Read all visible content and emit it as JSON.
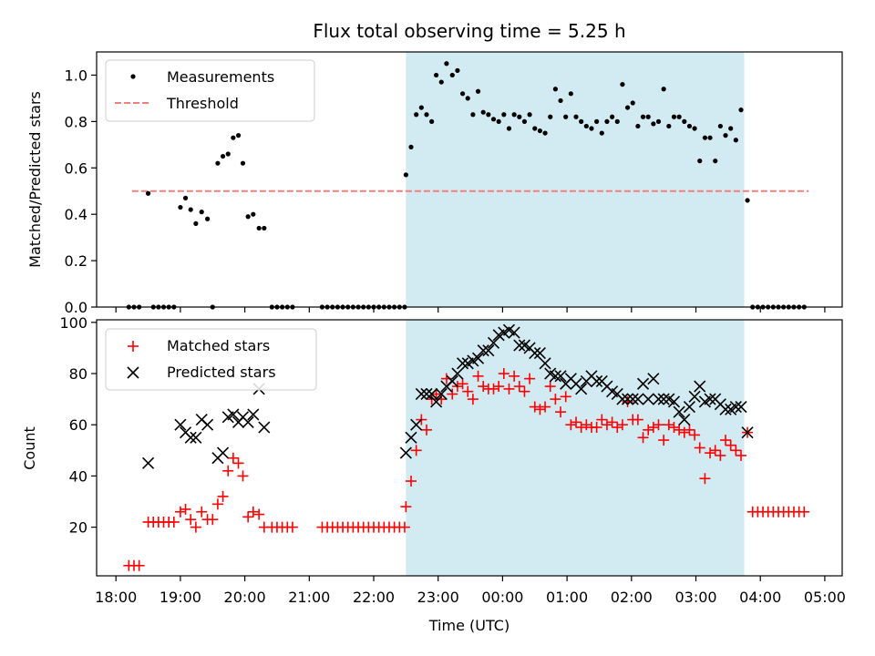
{
  "chart_data": {
    "type": "scatter",
    "title": "Flux total observing time = 5.25 h",
    "xlabel": "Time (UTC)",
    "x_tick_labels": [
      "18:00",
      "19:00",
      "20:00",
      "21:00",
      "22:00",
      "23:00",
      "00:00",
      "01:00",
      "02:00",
      "03:00",
      "04:00",
      "05:00"
    ],
    "x_tick_hours": [
      0,
      1,
      2,
      3,
      4,
      5,
      6,
      7,
      8,
      9,
      10,
      11
    ],
    "x_origin": "18:00",
    "xlim_hours": [
      -0.3,
      11.27
    ],
    "highlight_span_hours": [
      4.5,
      9.75
    ],
    "highlight_color": "#add8e6",
    "panels": [
      {
        "name": "ratio",
        "ylabel": "Matched/Predicted stars",
        "ylim": [
          0,
          1.1
        ],
        "yticks": [
          0,
          0.2,
          0.4,
          0.6,
          0.8,
          1.0
        ],
        "ytick_labels": [
          "0.0",
          "0.2",
          "0.4",
          "0.6",
          "0.8",
          "1.0"
        ],
        "threshold": {
          "name": "Threshold",
          "y": 0.5,
          "x_start": 0.25,
          "x_end": 10.75,
          "color": "#f08080"
        },
        "series": [
          {
            "name": "Measurements",
            "marker": "dot",
            "color": "#000000",
            "x": [
              0.2,
              0.28,
              0.36,
              0.5,
              0.58,
              0.66,
              0.74,
              0.82,
              0.9,
              1.0,
              1.08,
              1.16,
              1.24,
              1.33,
              1.42,
              1.5,
              1.58,
              1.66,
              1.74,
              1.82,
              1.9,
              1.97,
              2.05,
              2.13,
              2.22,
              2.3,
              2.42,
              2.5,
              2.58,
              2.66,
              2.74,
              3.2,
              3.28,
              3.36,
              3.44,
              3.52,
              3.6,
              3.68,
              3.76,
              3.84,
              3.92,
              4.0,
              4.08,
              4.16,
              4.24,
              4.32,
              4.4,
              4.48,
              4.5,
              4.58,
              4.66,
              4.74,
              4.82,
              4.9,
              4.97,
              5.05,
              5.13,
              5.22,
              5.3,
              5.38,
              5.46,
              5.54,
              5.62,
              5.7,
              5.78,
              5.86,
              5.94,
              6.02,
              6.1,
              6.18,
              6.26,
              6.34,
              6.42,
              6.5,
              6.58,
              6.66,
              6.74,
              6.82,
              6.9,
              6.98,
              7.06,
              7.14,
              7.22,
              7.3,
              7.38,
              7.46,
              7.54,
              7.62,
              7.7,
              7.78,
              7.86,
              7.94,
              8.02,
              8.1,
              8.18,
              8.26,
              8.34,
              8.42,
              8.5,
              8.58,
              8.66,
              8.74,
              8.82,
              8.9,
              8.98,
              9.06,
              9.14,
              9.22,
              9.3,
              9.38,
              9.46,
              9.54,
              9.62,
              9.7,
              9.8,
              9.88,
              9.96,
              10.04,
              10.12,
              10.2,
              10.28,
              10.36,
              10.44,
              10.52,
              10.6,
              10.68
            ],
            "y": [
              0,
              0,
              0,
              0.49,
              0,
              0,
              0,
              0,
              0,
              0.43,
              0.47,
              0.42,
              0.36,
              0.41,
              0.38,
              0,
              0.62,
              0.65,
              0.66,
              0.73,
              0.74,
              0.62,
              0.39,
              0.4,
              0.34,
              0.34,
              0,
              0,
              0,
              0,
              0,
              0,
              0,
              0,
              0,
              0,
              0,
              0,
              0,
              0,
              0,
              0,
              0,
              0,
              0,
              0,
              0,
              0,
              0.57,
              0.69,
              0.83,
              0.86,
              0.83,
              0.8,
              1.0,
              0.97,
              1.05,
              1.0,
              1.02,
              0.92,
              0.9,
              0.83,
              0.93,
              0.84,
              0.83,
              0.81,
              0.8,
              0.83,
              0.77,
              0.83,
              0.82,
              0.8,
              0.83,
              0.77,
              0.76,
              0.75,
              0.82,
              0.94,
              0.89,
              0.82,
              0.92,
              0.82,
              0.8,
              0.78,
              0.77,
              0.8,
              0.75,
              0.8,
              0.82,
              0.8,
              0.96,
              0.86,
              0.88,
              0.78,
              0.82,
              0.82,
              0.79,
              0.8,
              0.94,
              0.78,
              0.82,
              0.82,
              0.8,
              0.78,
              0.77,
              0.63,
              0.73,
              0.73,
              0.63,
              0.78,
              0.74,
              0.77,
              0.72,
              0.85,
              0.46,
              0,
              0,
              0,
              0,
              0,
              0,
              0,
              0,
              0,
              0,
              0
            ]
          }
        ]
      },
      {
        "name": "counts",
        "ylabel": "Count",
        "ylim": [
          1,
          101
        ],
        "yticks": [
          20,
          40,
          60,
          80,
          100
        ],
        "ytick_labels": [
          "20",
          "40",
          "60",
          "80",
          "100"
        ],
        "series": [
          {
            "name": "Matched stars",
            "marker": "plus",
            "color": "#ff0000",
            "x": [
              0.2,
              0.28,
              0.36,
              0.5,
              0.58,
              0.66,
              0.74,
              0.82,
              0.9,
              1.0,
              1.08,
              1.16,
              1.24,
              1.33,
              1.42,
              1.5,
              1.58,
              1.66,
              1.74,
              1.82,
              1.9,
              1.97,
              2.05,
              2.13,
              2.22,
              2.3,
              2.42,
              2.5,
              2.58,
              2.66,
              2.74,
              3.2,
              3.28,
              3.36,
              3.44,
              3.52,
              3.6,
              3.68,
              3.76,
              3.84,
              3.92,
              4.0,
              4.08,
              4.16,
              4.24,
              4.32,
              4.4,
              4.48,
              4.5,
              4.58,
              4.66,
              4.74,
              4.82,
              4.9,
              4.97,
              5.05,
              5.13,
              5.22,
              5.3,
              5.38,
              5.46,
              5.54,
              5.62,
              5.7,
              5.78,
              5.86,
              5.94,
              6.02,
              6.1,
              6.18,
              6.26,
              6.34,
              6.42,
              6.5,
              6.58,
              6.66,
              6.74,
              6.82,
              6.9,
              6.98,
              7.06,
              7.14,
              7.22,
              7.3,
              7.38,
              7.46,
              7.54,
              7.62,
              7.7,
              7.78,
              7.86,
              7.94,
              8.02,
              8.1,
              8.18,
              8.26,
              8.34,
              8.42,
              8.5,
              8.58,
              8.66,
              8.74,
              8.82,
              8.9,
              8.98,
              9.06,
              9.14,
              9.22,
              9.3,
              9.38,
              9.46,
              9.54,
              9.62,
              9.7,
              9.8,
              9.88,
              9.96,
              10.04,
              10.12,
              10.2,
              10.28,
              10.36,
              10.44,
              10.52,
              10.6,
              10.68
            ],
            "y": [
              5,
              5,
              5,
              22,
              22,
              22,
              22,
              22,
              22,
              26,
              27,
              23,
              20,
              26,
              23,
              23,
              29,
              32,
              42,
              47,
              45,
              40,
              24,
              26,
              25,
              20,
              20,
              20,
              20,
              20,
              20,
              20,
              20,
              20,
              20,
              20,
              20,
              20,
              20,
              20,
              20,
              20,
              20,
              20,
              20,
              20,
              20,
              20,
              28,
              38,
              50,
              62,
              58,
              70,
              72,
              70,
              78,
              72,
              75,
              76,
              73,
              70,
              79,
              75,
              74,
              74,
              75,
              80,
              74,
              79,
              75,
              73,
              78,
              67,
              66,
              67,
              75,
              70,
              65,
              71,
              60,
              61,
              59,
              60,
              59,
              59,
              62,
              60,
              61,
              59,
              60,
              69,
              62,
              62,
              55,
              58,
              59,
              60,
              54,
              60,
              59,
              58,
              57,
              58,
              56,
              51,
              39,
              49,
              50,
              48,
              54,
              52,
              50,
              48,
              57,
              26,
              26,
              26,
              26,
              26,
              26,
              26,
              26,
              26,
              26,
              26
            ]
          },
          {
            "name": "Predicted stars",
            "marker": "x",
            "color": "#000000",
            "x": [
              0.5,
              1.0,
              1.08,
              1.16,
              1.24,
              1.33,
              1.42,
              1.58,
              1.66,
              1.74,
              1.82,
              1.9,
              1.97,
              2.05,
              2.13,
              2.22,
              2.3,
              4.5,
              4.58,
              4.66,
              4.74,
              4.82,
              4.9,
              4.97,
              5.05,
              5.13,
              5.22,
              5.3,
              5.38,
              5.46,
              5.54,
              5.62,
              5.7,
              5.78,
              5.86,
              5.94,
              6.02,
              6.1,
              6.18,
              6.26,
              6.34,
              6.42,
              6.5,
              6.58,
              6.66,
              6.74,
              6.82,
              6.9,
              6.98,
              7.06,
              7.14,
              7.22,
              7.3,
              7.38,
              7.46,
              7.54,
              7.62,
              7.7,
              7.78,
              7.86,
              7.94,
              8.02,
              8.1,
              8.18,
              8.26,
              8.34,
              8.42,
              8.5,
              8.58,
              8.66,
              8.74,
              8.82,
              8.9,
              8.98,
              9.06,
              9.14,
              9.22,
              9.3,
              9.38,
              9.46,
              9.54,
              9.62,
              9.7,
              9.8
            ],
            "y": [
              45,
              60,
              57,
              55,
              55,
              62,
              60,
              47,
              49,
              63,
              64,
              61,
              63,
              61,
              64,
              74,
              59,
              49,
              55,
              60,
              72,
              72,
              72,
              69,
              72,
              75,
              77,
              80,
              84,
              84,
              85,
              86,
              89,
              89,
              92,
              95,
              96,
              97,
              96,
              91,
              91,
              90,
              88,
              88,
              84,
              80,
              79,
              79,
              76,
              78,
              76,
              74,
              77,
              79,
              77,
              77,
              75,
              73,
              72,
              70,
              70,
              70,
              70,
              76,
              70,
              78,
              70,
              70,
              70,
              69,
              65,
              62,
              67,
              71,
              75,
              69,
              70,
              70,
              68,
              66,
              66,
              67,
              67,
              57
            ]
          }
        ]
      }
    ]
  }
}
